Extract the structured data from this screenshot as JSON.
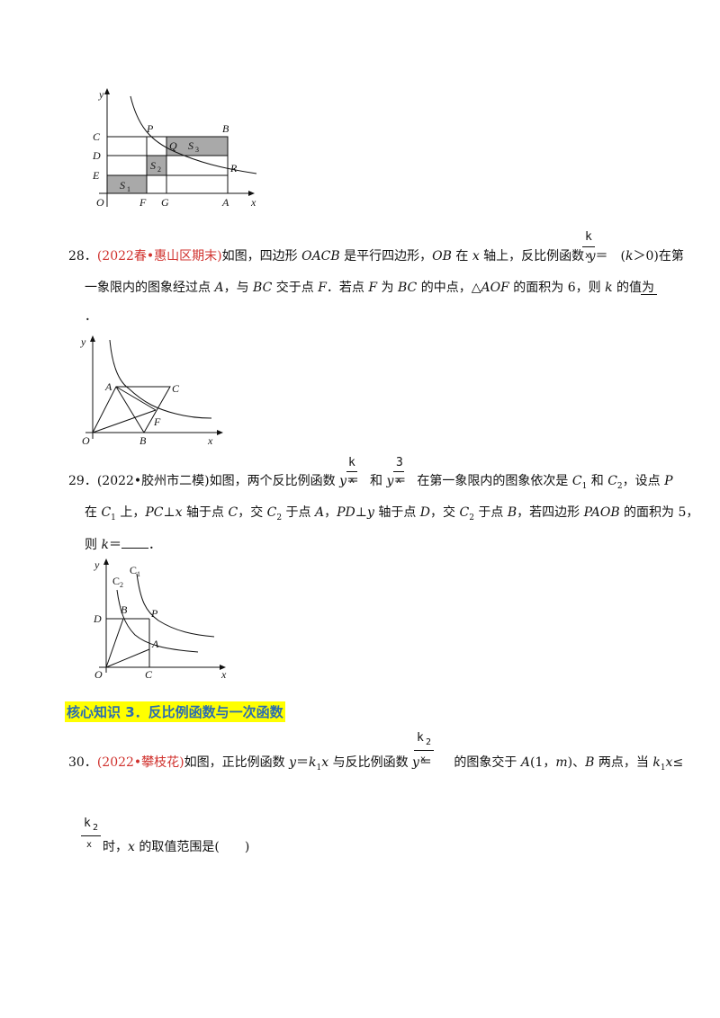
{
  "fig27": {
    "labels": [
      "y",
      "C",
      "D",
      "E",
      "O",
      "P",
      "B",
      "Q",
      "S",
      "3",
      "S",
      "2",
      "S",
      "1",
      "R",
      "F",
      "G",
      "A",
      "x"
    ]
  },
  "q28": {
    "num": "28．",
    "source": "(2022春•惠山区期末)",
    "t1": "如图，四边形 ",
    "t2": "OACB",
    "t3": " 是平行四边形，",
    "t4": "OB",
    "t5": " 在 ",
    "t6": "x",
    "t7": " 轴上，反比例函数 ",
    "t8": "y",
    "t9": "＝",
    "frac_num": "k",
    "frac_den": "x",
    "t10": "(",
    "t11": "k",
    "t12": "＞0)在第",
    "line2a": "一象限内的图象经过点 ",
    "line2b": "A",
    "line2c": "，与 ",
    "line2d": "BC",
    "line2e": " 交于点 ",
    "line2f": "F",
    "line2g": "．若点 ",
    "line2h": "F",
    "line2i": " 为 ",
    "line2j": "BC",
    "line2k": " 的中点，△",
    "line2l": "AOF",
    "line2m": " 的面积为 6，则 ",
    "line2n": "k",
    "line2o": " 的值为",
    "line3": "．"
  },
  "fig28": {
    "labels": [
      "y",
      "A",
      "C",
      "F",
      "O",
      "B",
      "x"
    ]
  },
  "q29": {
    "num": "29．",
    "source": "(2022•胶州市二模)",
    "t1": "如图，两个反比例函数 ",
    "t2": "y",
    "t3": "＝",
    "frac1_num": "k",
    "frac1_den": "x",
    "t4": "和 ",
    "t5": "y",
    "t6": "＝",
    "frac2_num": "3",
    "frac2_den": "x",
    "t7": "在第一象限内的图象依次是 ",
    "t8": "C",
    "t9": "1",
    "t10": " 和 ",
    "t11": "C",
    "t12": "2",
    "t13": "，设点 ",
    "t14": "P",
    "line2a": "在 ",
    "line2b": "C",
    "line2c": "1",
    "line2d": " 上，",
    "line2e": "PC",
    "line2f": "⊥",
    "line2g": "x",
    "line2h": " 轴于点 ",
    "line2i": "C",
    "line2j": "，交 ",
    "line2k": "C",
    "line2l": "2",
    "line2m": " 于点 ",
    "line2n": "A",
    "line2o": "，",
    "line2p": "PD",
    "line2q": "⊥",
    "line2r": "y",
    "line2s": " 轴于点 ",
    "line2t": "D",
    "line2u": "，交 ",
    "line2v": "C",
    "line2w": "2",
    "line2x": " 于点 ",
    "line2y": "B",
    "line2z": "，若四边形 ",
    "line2aa": "PAOB",
    "line2bb": " 的面积为 5，",
    "line3a": "则 ",
    "line3b": "k",
    "line3c": "＝",
    "line3d": "．"
  },
  "fig29": {
    "labels": [
      "y",
      "C",
      "1",
      "C",
      "2",
      "D",
      "B",
      "P",
      "A",
      "O",
      "C",
      "x"
    ]
  },
  "section3": {
    "title": "核心知识 3．反比例函数与一次函数"
  },
  "q30": {
    "num": "30．",
    "source": "(2022•攀枝花)",
    "t1": "如图，正比例函数 ",
    "t2": "y",
    "t3": "＝",
    "t4": "k",
    "t5": "1",
    "t6": "x",
    "t7": " 与反比例函数 ",
    "t8": "y",
    "t9": "＝",
    "frac_num": "k",
    "frac_num_sub": "2",
    "frac_den": "x",
    "t10": " 的图象交于 ",
    "t11": "A",
    "t12": "(1，",
    "t13": "m",
    "t14": ")、",
    "t15": "B",
    "t16": " 两点，当 ",
    "t17": "k",
    "t18": "1",
    "t19": "x",
    "t20": "≤",
    "line2_frac_num": "k",
    "line2_frac_num_sub": "2",
    "line2_frac_den": "x",
    "line2a": " 时，",
    "line2b": "x",
    "line2c": " 的取值范围是(　　)"
  }
}
